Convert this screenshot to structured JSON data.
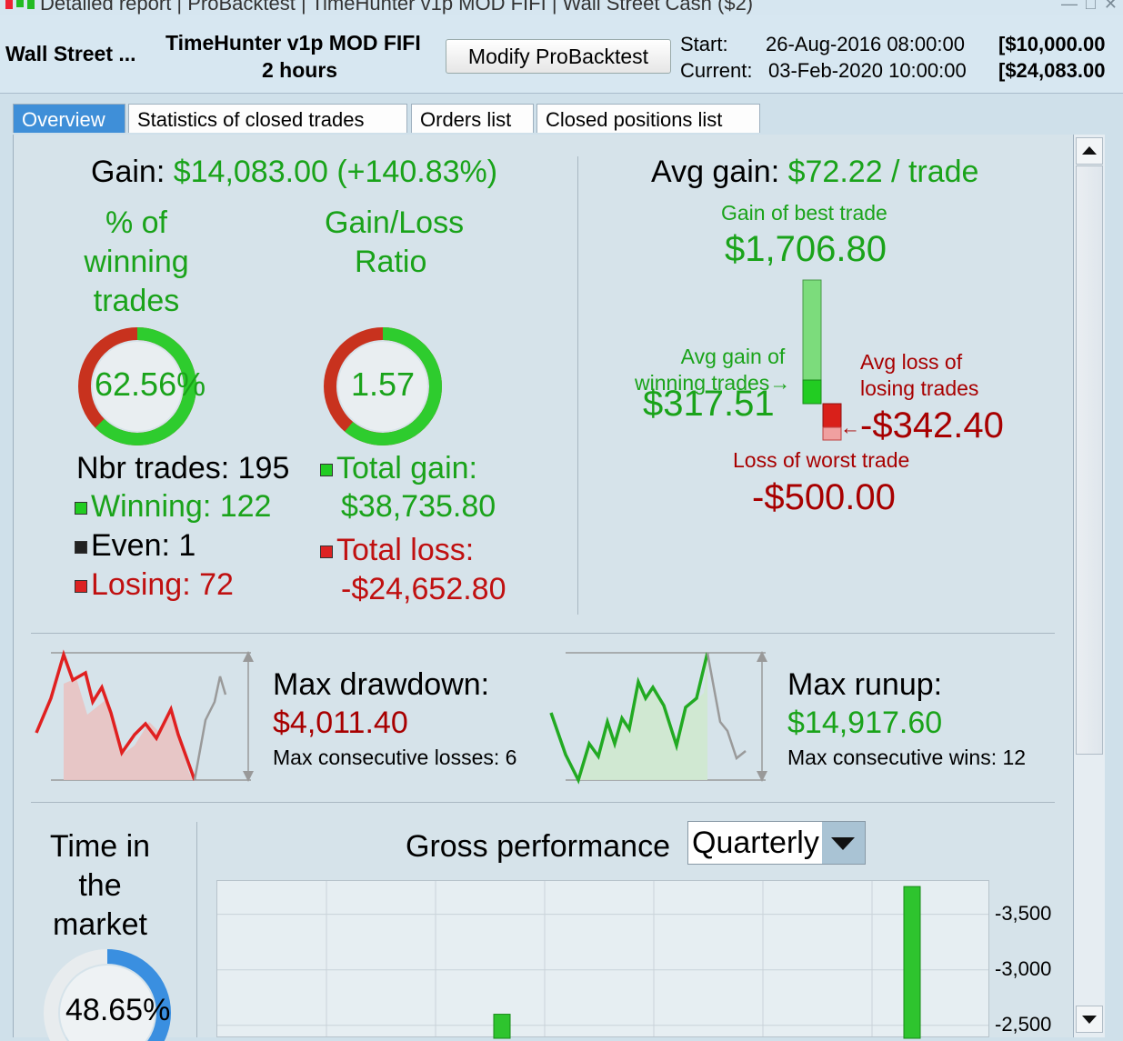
{
  "window": {
    "title": "Detailed report | ProBacktest | TimeHunter v1p MOD FIFI | Wall Street Cash ($2)",
    "controls": "— □ ✕"
  },
  "header": {
    "instrument": "Wall Street ...",
    "system_name": "TimeHunter v1p MOD FIFI",
    "timeframe": "2 hours",
    "modify_button": "Modify ProBacktest",
    "start_label": "Start:",
    "start_date": "26-Aug-2016 08:00:00",
    "start_value": "[$10,000.00",
    "current_label": "Current:",
    "current_date": "03-Feb-2020 10:00:00",
    "current_value": "[$24,083.00"
  },
  "tabs": [
    {
      "label": "Overview",
      "active": true
    },
    {
      "label": "Statistics of closed trades",
      "active": false
    },
    {
      "label": "Orders list",
      "active": false
    },
    {
      "label": "Closed positions list",
      "active": false
    }
  ],
  "overview": {
    "gain_label": "Gain:",
    "gain_value": "$14,083.00",
    "gain_pct": "(+140.83%)",
    "winning_pct_title": [
      "% of",
      "winning",
      "trades"
    ],
    "winning_pct_value": "62.56%",
    "winning_pct_fraction": 0.6256,
    "ratio_title": [
      "Gain/Loss",
      "Ratio"
    ],
    "ratio_value": "1.57",
    "ratio_fraction": 0.611,
    "nbr_trades": "Nbr trades: 195",
    "winning": "Winning: 122",
    "even": "Even: 1",
    "losing": "Losing: 72",
    "total_gain_label": "Total gain:",
    "total_gain_value": "$38,735.80",
    "total_loss_label": "Total loss:",
    "total_loss_value": "-$24,652.80",
    "avg_gain_label": "Avg gain:",
    "avg_gain_value": "$72.22 / trade",
    "best_trade_label": "Gain of best trade",
    "best_trade_value": "$1,706.80",
    "avg_win_label": [
      "Avg gain of",
      "winning trades"
    ],
    "avg_win_value": "$317.51",
    "avg_loss_label": [
      "Avg loss of",
      "losing trades"
    ],
    "avg_loss_value": "-$342.40",
    "worst_trade_label": "Loss of worst trade",
    "worst_trade_value": "-$500.00"
  },
  "drawdown": {
    "title": "Max drawdown:",
    "value": "$4,011.40",
    "consec_label": "Max consecutive losses: 6"
  },
  "runup": {
    "title": "Max runup:",
    "value": "$14,917.60",
    "consec_label": "Max consecutive wins: 12"
  },
  "time_in_market": {
    "title": [
      "Time in",
      "the",
      "market"
    ],
    "value": "48.65%",
    "fraction": 0.4865
  },
  "gross_performance": {
    "title": "Gross performance",
    "period": "Quarterly"
  },
  "chart_data": {
    "type": "bar",
    "title": "Gross performance",
    "ylim": [
      2400,
      3800
    ],
    "yticks": [
      3500,
      3000,
      2500
    ],
    "ytick_labels": [
      "3,500",
      "3,000",
      "2,500"
    ],
    "values": [
      2600,
      3750
    ],
    "grid": true
  },
  "colors": {
    "gain": "#1aa31a",
    "loss": "#a80000",
    "tab_active": "#3f8fd8"
  }
}
